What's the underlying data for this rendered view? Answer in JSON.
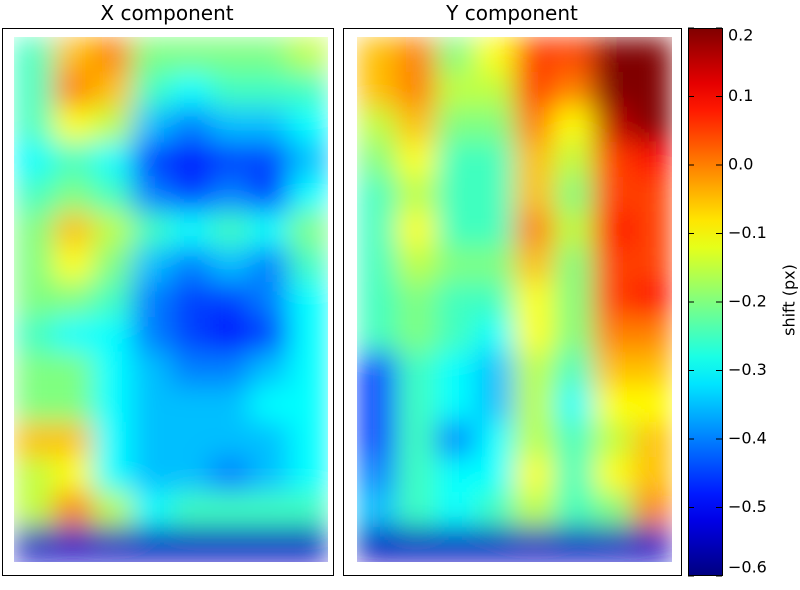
{
  "chart_data": [
    {
      "type": "heatmap",
      "title": "X component",
      "zlim": [
        -0.6,
        0.2
      ],
      "z": [
        [
          -0.25,
          -0.05,
          0.0,
          -0.2,
          -0.2,
          -0.2,
          -0.2,
          -0.15
        ],
        [
          -0.25,
          0.0,
          -0.05,
          -0.25,
          -0.3,
          -0.25,
          -0.25,
          -0.25
        ],
        [
          -0.25,
          -0.1,
          -0.15,
          -0.35,
          -0.4,
          -0.35,
          -0.35,
          -0.3
        ],
        [
          -0.3,
          -0.25,
          -0.3,
          -0.45,
          -0.5,
          -0.45,
          -0.45,
          -0.35
        ],
        [
          -0.25,
          -0.2,
          -0.25,
          -0.4,
          -0.45,
          -0.4,
          -0.45,
          -0.3
        ],
        [
          -0.2,
          -0.05,
          -0.15,
          -0.25,
          -0.3,
          -0.25,
          -0.3,
          -0.2
        ],
        [
          -0.2,
          -0.1,
          -0.2,
          -0.35,
          -0.4,
          -0.35,
          -0.4,
          -0.25
        ],
        [
          -0.2,
          -0.2,
          -0.25,
          -0.4,
          -0.45,
          -0.45,
          -0.4,
          -0.3
        ],
        [
          -0.25,
          -0.3,
          -0.3,
          -0.4,
          -0.45,
          -0.5,
          -0.45,
          -0.3
        ],
        [
          -0.2,
          -0.2,
          -0.3,
          -0.35,
          -0.4,
          -0.4,
          -0.35,
          -0.3
        ],
        [
          -0.2,
          -0.2,
          -0.3,
          -0.35,
          -0.35,
          -0.35,
          -0.3,
          -0.3
        ],
        [
          -0.05,
          -0.05,
          -0.3,
          -0.35,
          -0.35,
          -0.35,
          -0.35,
          -0.3
        ],
        [
          -0.15,
          -0.1,
          -0.3,
          -0.35,
          -0.35,
          -0.4,
          -0.35,
          -0.3
        ],
        [
          -0.15,
          0.0,
          -0.15,
          -0.3,
          -0.25,
          -0.25,
          -0.25,
          -0.25
        ],
        [
          -0.55,
          -0.55,
          -0.55,
          -0.55,
          -0.55,
          -0.55,
          -0.55,
          -0.55
        ]
      ]
    },
    {
      "type": "heatmap",
      "title": "Y component",
      "zlim": [
        -0.6,
        0.2
      ],
      "z": [
        [
          -0.05,
          0.0,
          -0.2,
          -0.1,
          0.05,
          0.05,
          0.2,
          0.2
        ],
        [
          -0.05,
          0.0,
          -0.15,
          -0.15,
          0.05,
          0.0,
          0.2,
          0.2
        ],
        [
          -0.15,
          -0.05,
          -0.2,
          -0.2,
          0.0,
          -0.1,
          0.15,
          0.2
        ],
        [
          -0.2,
          -0.1,
          -0.25,
          -0.25,
          -0.05,
          -0.15,
          0.05,
          0.1
        ],
        [
          -0.25,
          -0.15,
          -0.25,
          -0.25,
          -0.05,
          -0.2,
          0.05,
          0.05
        ],
        [
          -0.25,
          -0.1,
          -0.25,
          -0.25,
          0.0,
          -0.15,
          0.1,
          0.05
        ],
        [
          -0.25,
          -0.15,
          -0.2,
          -0.2,
          -0.05,
          -0.2,
          0.05,
          0.05
        ],
        [
          -0.25,
          -0.2,
          -0.25,
          -0.25,
          -0.1,
          -0.2,
          0.05,
          0.1
        ],
        [
          -0.25,
          -0.2,
          -0.25,
          -0.3,
          -0.1,
          -0.2,
          0.0,
          0.0
        ],
        [
          -0.45,
          -0.25,
          -0.3,
          -0.35,
          -0.15,
          -0.25,
          -0.05,
          -0.05
        ],
        [
          -0.45,
          -0.25,
          -0.3,
          -0.35,
          -0.15,
          -0.3,
          -0.1,
          -0.1
        ],
        [
          -0.45,
          -0.25,
          -0.4,
          -0.3,
          -0.15,
          -0.25,
          -0.15,
          -0.05
        ],
        [
          -0.4,
          -0.25,
          -0.3,
          -0.3,
          -0.1,
          -0.25,
          -0.1,
          -0.05
        ],
        [
          -0.35,
          -0.25,
          -0.3,
          -0.25,
          -0.15,
          -0.25,
          -0.2,
          0.0
        ],
        [
          -0.55,
          -0.55,
          -0.55,
          -0.55,
          -0.55,
          -0.55,
          -0.55,
          -0.55
        ]
      ]
    },
    {
      "type": "colorbar",
      "label": "shift (px)",
      "ylim": [
        -0.6,
        0.2
      ],
      "yticks": [
        {
          "value": -0.6,
          "label": "−0.6"
        },
        {
          "value": -0.5,
          "label": "−0.5"
        },
        {
          "value": -0.4,
          "label": "−0.4"
        },
        {
          "value": -0.3,
          "label": "−0.3"
        },
        {
          "value": -0.2,
          "label": "−0.2"
        },
        {
          "value": -0.1,
          "label": "−0.1"
        },
        {
          "value": 0.0,
          "label": "0.0"
        },
        0.1,
        0.2
      ]
    }
  ]
}
